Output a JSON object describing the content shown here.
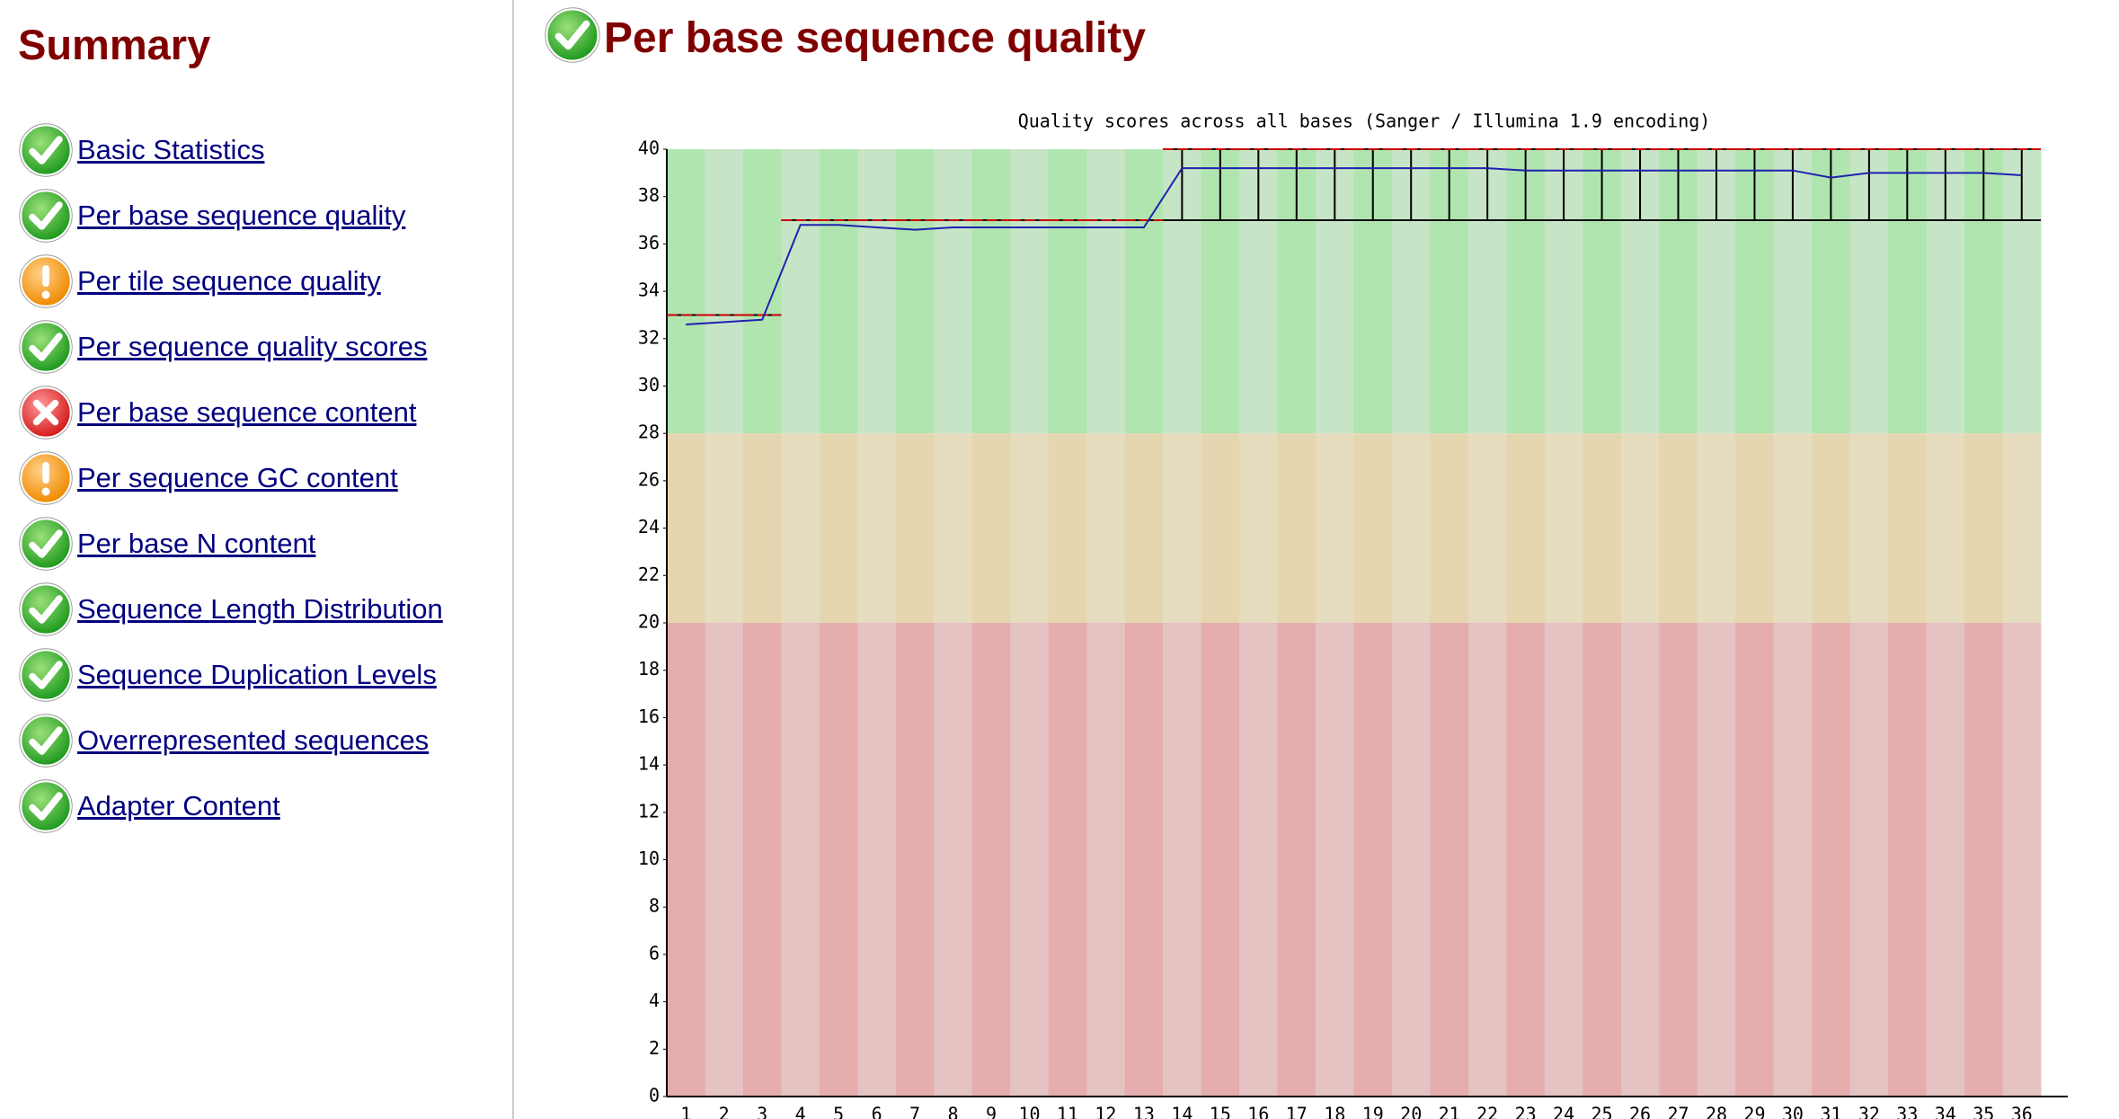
{
  "sidebar": {
    "title": "Summary",
    "items": [
      {
        "label": "Basic Statistics",
        "icon": "pass"
      },
      {
        "label": "Per base sequence quality",
        "icon": "pass"
      },
      {
        "label": "Per tile sequence quality",
        "icon": "warn"
      },
      {
        "label": "Per sequence quality scores",
        "icon": "pass"
      },
      {
        "label": "Per base sequence content",
        "icon": "fail"
      },
      {
        "label": "Per sequence GC content",
        "icon": "warn"
      },
      {
        "label": "Per base N content",
        "icon": "pass"
      },
      {
        "label": "Sequence Length Distribution",
        "icon": "pass"
      },
      {
        "label": "Sequence Duplication Levels",
        "icon": "pass"
      },
      {
        "label": "Overrepresented sequences",
        "icon": "pass"
      },
      {
        "label": "Adapter Content",
        "icon": "pass"
      }
    ]
  },
  "section": {
    "title": "Per base sequence quality",
    "icon": "pass"
  },
  "chart_data": {
    "type": "box",
    "title": "Quality scores across all bases (Sanger / Illumina 1.9 encoding)",
    "categories": [
      "1",
      "2",
      "3",
      "4",
      "5",
      "6",
      "7",
      "8",
      "9",
      "10",
      "11",
      "12",
      "13",
      "14",
      "15",
      "16",
      "17",
      "18",
      "19",
      "20",
      "21",
      "22",
      "23",
      "24",
      "25",
      "26",
      "27",
      "28",
      "29",
      "30",
      "31",
      "32",
      "33",
      "34",
      "35",
      "36"
    ],
    "ylim": [
      0,
      40
    ],
    "yticks": [
      0,
      2,
      4,
      6,
      8,
      10,
      12,
      14,
      16,
      18,
      20,
      22,
      24,
      26,
      28,
      30,
      32,
      34,
      36,
      38,
      40
    ],
    "zones": [
      {
        "range": [
          28,
          40
        ],
        "colors": [
          "#b0e5b0",
          "#c6e5c6"
        ]
      },
      {
        "range": [
          20,
          28
        ],
        "colors": [
          "#e6d6af",
          "#e6dcc0"
        ]
      },
      {
        "range": [
          0,
          20
        ],
        "colors": [
          "#e5adad",
          "#e5c3c3"
        ]
      }
    ],
    "median": {
      "color": "#cc0000",
      "values": [
        33,
        33,
        33,
        37,
        37,
        37,
        37,
        37,
        37,
        37,
        37,
        37,
        37,
        40,
        40,
        40,
        40,
        40,
        40,
        40,
        40,
        40,
        40,
        40,
        40,
        40,
        40,
        40,
        40,
        40,
        40,
        40,
        40,
        40,
        40,
        40
      ]
    },
    "mean": {
      "color": "#2020b0",
      "values": [
        32.6,
        32.7,
        32.8,
        36.8,
        36.8,
        36.7,
        36.6,
        36.7,
        36.7,
        36.7,
        36.7,
        36.7,
        36.7,
        39.2,
        39.2,
        39.2,
        39.2,
        39.2,
        39.2,
        39.2,
        39.2,
        39.2,
        39.1,
        39.1,
        39.1,
        39.1,
        39.1,
        39.1,
        39.1,
        39.1,
        38.8,
        39.0,
        39.0,
        39.0,
        39.0,
        38.9
      ]
    },
    "whiskers": {
      "color": "#000000",
      "lower": [
        33,
        33,
        33,
        37,
        37,
        37,
        37,
        37,
        37,
        37,
        37,
        37,
        37,
        37,
        37,
        37,
        37,
        37,
        37,
        37,
        37,
        37,
        37,
        37,
        37,
        37,
        37,
        37,
        37,
        37,
        37,
        37,
        37,
        37,
        37,
        37
      ],
      "upper": [
        33,
        33,
        33,
        37,
        37,
        37,
        37,
        37,
        37,
        37,
        37,
        37,
        37,
        40,
        40,
        40,
        40,
        40,
        40,
        40,
        40,
        40,
        40,
        40,
        40,
        40,
        40,
        40,
        40,
        40,
        40,
        40,
        40,
        40,
        40,
        40
      ]
    }
  }
}
